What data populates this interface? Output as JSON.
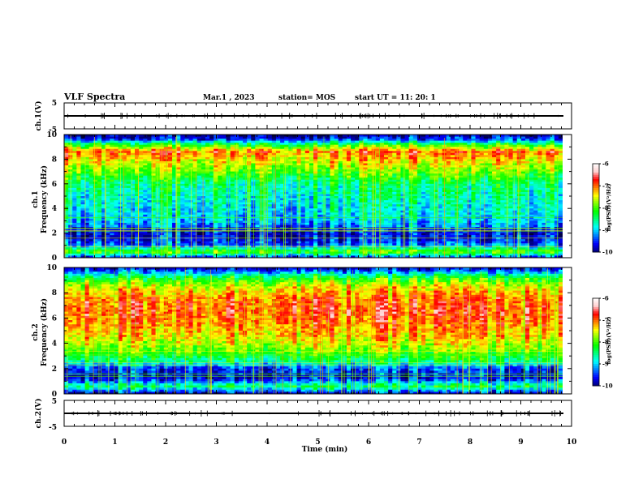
{
  "header": {
    "title": "VLF Spectra",
    "date": "Mar.1  , 2023",
    "station": "station= MOS",
    "start": "start  UT =   11: 20: 1"
  },
  "colors": {
    "colormap": [
      "#000033",
      "#00007f",
      "#0000ff",
      "#0080ff",
      "#00ffff",
      "#00ff80",
      "#00ff00",
      "#80ff00",
      "#ffff00",
      "#ff8000",
      "#ff0000",
      "#ffd0d0",
      "#ffffff"
    ],
    "axis": "#000000"
  },
  "chart_data": [
    {
      "type": "line",
      "name_label": "ch.1(V)",
      "ylim": [
        -5,
        5
      ],
      "yticks": [
        "5",
        "-5"
      ],
      "baseline": 0,
      "xlim": [
        0,
        10
      ]
    },
    {
      "type": "heatmap",
      "ylabel_top": "ch.1",
      "ylabel": "Frequency (kHz)",
      "ylim": [
        0,
        10
      ],
      "yticks": [
        "0",
        "2",
        "4",
        "6",
        "8",
        "10"
      ],
      "xlim": [
        0,
        10
      ],
      "colorbar": {
        "ticks": [
          "-6",
          "-7",
          "-8",
          "-9",
          "-10"
        ],
        "range": [
          -10,
          -6
        ],
        "label": "log(PSD)(V²/Hz)"
      },
      "profile": [
        {
          "f": 0.0,
          "v": -9.5
        },
        {
          "f": 0.5,
          "v": -7.6
        },
        {
          "f": 1.0,
          "v": -9.2
        },
        {
          "f": 1.6,
          "v": -9.6
        },
        {
          "f": 2.2,
          "v": -9.6
        },
        {
          "f": 2.6,
          "v": -9.1
        },
        {
          "f": 3.2,
          "v": -8.8
        },
        {
          "f": 4.0,
          "v": -8.7
        },
        {
          "f": 5.0,
          "v": -8.5
        },
        {
          "f": 6.0,
          "v": -8.3
        },
        {
          "f": 7.0,
          "v": -7.6
        },
        {
          "f": 8.0,
          "v": -7.0
        },
        {
          "f": 8.6,
          "v": -6.6
        },
        {
          "f": 9.2,
          "v": -8.0
        },
        {
          "f": 9.6,
          "v": -9.4
        },
        {
          "f": 10.0,
          "v": -9.9
        }
      ]
    },
    {
      "type": "heatmap",
      "ylabel_top": "ch.2",
      "ylabel": "Frequency (kHz)",
      "ylim": [
        0,
        10
      ],
      "yticks": [
        "0",
        "2",
        "4",
        "6",
        "8",
        "10"
      ],
      "xlim": [
        0,
        10
      ],
      "colorbar": {
        "ticks": [
          "-6",
          "-7",
          "-8",
          "-9",
          "-10"
        ],
        "range": [
          -10,
          -6
        ],
        "label": "log(PSD)(V²/Hz)"
      },
      "profile": [
        {
          "f": 0.0,
          "v": -9.8
        },
        {
          "f": 0.6,
          "v": -8.2
        },
        {
          "f": 1.2,
          "v": -9.6
        },
        {
          "f": 2.0,
          "v": -9.4
        },
        {
          "f": 2.6,
          "v": -8.3
        },
        {
          "f": 3.4,
          "v": -7.6
        },
        {
          "f": 4.5,
          "v": -7.0
        },
        {
          "f": 5.5,
          "v": -6.7
        },
        {
          "f": 6.5,
          "v": -6.5
        },
        {
          "f": 7.5,
          "v": -6.6
        },
        {
          "f": 8.5,
          "v": -7.2
        },
        {
          "f": 9.2,
          "v": -8.0
        },
        {
          "f": 9.7,
          "v": -9.2
        },
        {
          "f": 10.0,
          "v": -9.8
        }
      ]
    },
    {
      "type": "line",
      "name_label": "ch.2(V)",
      "ylim": [
        -5,
        5
      ],
      "yticks": [
        "5",
        "-5"
      ],
      "baseline": 0,
      "xlim": [
        0,
        10
      ],
      "xlabel": "Time  (min)",
      "xticks": [
        "0",
        "1",
        "2",
        "3",
        "4",
        "5",
        "6",
        "7",
        "8",
        "9",
        "10"
      ]
    }
  ]
}
